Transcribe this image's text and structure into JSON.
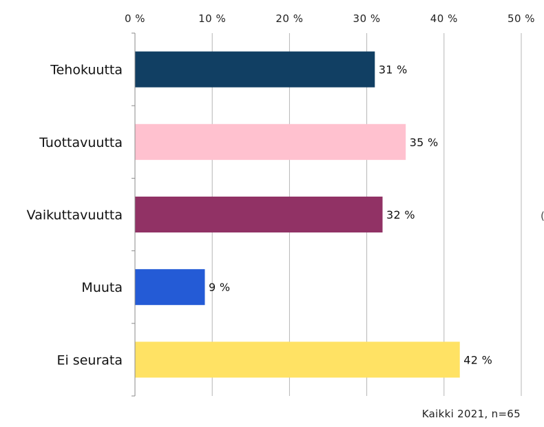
{
  "chart_data": {
    "type": "bar",
    "orientation": "horizontal",
    "categories": [
      "Tehokuutta",
      "Tuottavuutta",
      "Vaikuttavuutta",
      "Muuta",
      "Ei seurata"
    ],
    "values": [
      31,
      35,
      32,
      9,
      42
    ],
    "value_labels": [
      "31 %",
      "35 %",
      "32 %",
      "9 %",
      "42 %"
    ],
    "colors": [
      "#113f63",
      "#ffc1cf",
      "#913265",
      "#245bd6",
      "#ffe264"
    ],
    "xlim": [
      0,
      50
    ],
    "xticks": [
      0,
      10,
      20,
      30,
      40,
      50
    ],
    "xtick_labels": [
      "0 %",
      "10 %",
      "20 %",
      "30 %",
      "40 %",
      "50 %"
    ],
    "x_axis_position": "top",
    "grid": "vertical",
    "legend": "none"
  },
  "note": "Kaikki 2021, n=65",
  "edge_glyph": "("
}
